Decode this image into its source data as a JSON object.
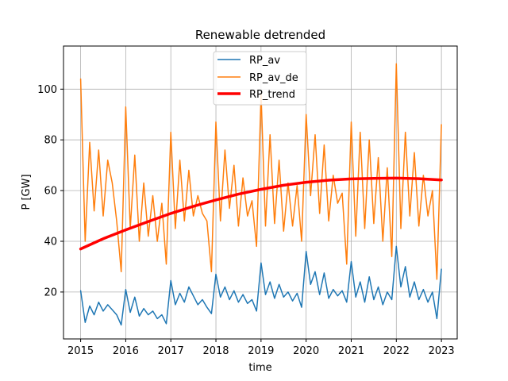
{
  "chart_data": {
    "type": "line",
    "title": "Renewable detrended",
    "xlabel": "time",
    "ylabel": "P [GW]",
    "xlim": [
      2014.62,
      2023.35
    ],
    "ylim": [
      1.5,
      117
    ],
    "x_ticks": [
      "2015",
      "2016",
      "2017",
      "2018",
      "2019",
      "2020",
      "2021",
      "2022",
      "2023"
    ],
    "y_ticks": [
      "20",
      "40",
      "60",
      "80",
      "100"
    ],
    "grid": true,
    "legend_position": "top-center",
    "series": [
      {
        "name": "RP_av",
        "color": "#1f77b4",
        "x": [
          2015.0,
          2015.1,
          2015.2,
          2015.3,
          2015.4,
          2015.5,
          2015.6,
          2015.7,
          2015.8,
          2015.9,
          2016.0,
          2016.1,
          2016.2,
          2016.3,
          2016.4,
          2016.5,
          2016.6,
          2016.7,
          2016.8,
          2016.9,
          2017.0,
          2017.1,
          2017.2,
          2017.3,
          2017.4,
          2017.5,
          2017.6,
          2017.7,
          2017.8,
          2017.9,
          2018.0,
          2018.1,
          2018.2,
          2018.3,
          2018.4,
          2018.5,
          2018.6,
          2018.7,
          2018.8,
          2018.9,
          2019.0,
          2019.1,
          2019.2,
          2019.3,
          2019.4,
          2019.5,
          2019.6,
          2019.7,
          2019.8,
          2019.9,
          2020.0,
          2020.1,
          2020.2,
          2020.3,
          2020.4,
          2020.5,
          2020.6,
          2020.7,
          2020.8,
          2020.9,
          2021.0,
          2021.1,
          2021.2,
          2021.3,
          2021.4,
          2021.5,
          2021.6,
          2021.7,
          2021.8,
          2021.9,
          2022.0,
          2022.1,
          2022.2,
          2022.3,
          2022.4,
          2022.5,
          2022.6,
          2022.7,
          2022.8,
          2022.9,
          2023.0
        ],
        "values": [
          20.5,
          8.0,
          14.5,
          11.0,
          16.0,
          12.5,
          15.0,
          13.0,
          11.0,
          7.0,
          21.0,
          12.0,
          18.0,
          10.5,
          13.5,
          11.0,
          12.5,
          9.5,
          11.0,
          7.5,
          24.5,
          15.0,
          19.5,
          16.0,
          22.0,
          18.5,
          15.0,
          17.0,
          14.0,
          11.5,
          27.0,
          18.0,
          22.0,
          17.0,
          20.5,
          16.0,
          19.0,
          15.5,
          17.0,
          12.5,
          31.5,
          19.0,
          24.0,
          17.5,
          23.0,
          18.0,
          20.0,
          16.5,
          19.5,
          14.0,
          36.0,
          23.0,
          28.0,
          19.0,
          27.5,
          17.5,
          21.0,
          18.5,
          20.5,
          16.0,
          32.0,
          18.0,
          24.0,
          16.0,
          26.0,
          17.0,
          22.0,
          15.0,
          20.0,
          17.0,
          38.0,
          22.0,
          30.0,
          18.0,
          24.0,
          17.0,
          21.0,
          16.0,
          20.0,
          9.5,
          29.0
        ]
      },
      {
        "name": "RP_av_de",
        "color": "#ff7f0e",
        "x": [
          2015.0,
          2015.1,
          2015.2,
          2015.3,
          2015.4,
          2015.5,
          2015.6,
          2015.7,
          2015.8,
          2015.9,
          2016.0,
          2016.1,
          2016.2,
          2016.3,
          2016.4,
          2016.5,
          2016.6,
          2016.7,
          2016.8,
          2016.9,
          2017.0,
          2017.1,
          2017.2,
          2017.3,
          2017.4,
          2017.5,
          2017.6,
          2017.7,
          2017.8,
          2017.9,
          2018.0,
          2018.1,
          2018.2,
          2018.3,
          2018.4,
          2018.5,
          2018.6,
          2018.7,
          2018.8,
          2018.9,
          2019.0,
          2019.1,
          2019.2,
          2019.3,
          2019.4,
          2019.5,
          2019.6,
          2019.7,
          2019.8,
          2019.9,
          2020.0,
          2020.1,
          2020.2,
          2020.3,
          2020.4,
          2020.5,
          2020.6,
          2020.7,
          2020.8,
          2020.9,
          2021.0,
          2021.1,
          2021.2,
          2021.3,
          2021.4,
          2021.5,
          2021.6,
          2021.7,
          2021.8,
          2021.9,
          2022.0,
          2022.1,
          2022.2,
          2022.3,
          2022.4,
          2022.5,
          2022.6,
          2022.7,
          2022.8,
          2022.9,
          2023.0
        ],
        "values": [
          104.0,
          40.0,
          79.0,
          52.0,
          76.0,
          50.0,
          72.0,
          63.0,
          48.0,
          28.0,
          93.0,
          45.0,
          74.0,
          40.0,
          63.0,
          42.0,
          58.0,
          40.0,
          55.0,
          31.0,
          83.0,
          45.0,
          72.0,
          48.0,
          68.0,
          50.0,
          58.0,
          51.0,
          48.0,
          28.0,
          87.0,
          48.0,
          76.0,
          53.0,
          70.0,
          46.0,
          65.0,
          50.0,
          56.0,
          38.0,
          98.0,
          46.0,
          82.0,
          47.0,
          72.0,
          44.0,
          63.0,
          46.0,
          62.0,
          40.0,
          90.0,
          58.0,
          82.0,
          51.0,
          78.0,
          48.0,
          66.0,
          55.0,
          59.0,
          31.0,
          87.0,
          42.0,
          83.0,
          45.0,
          80.0,
          47.0,
          73.0,
          40.0,
          69.0,
          34.0,
          110.0,
          45.0,
          83.0,
          50.0,
          75.0,
          46.0,
          66.0,
          50.0,
          60.0,
          25.0,
          86.0
        ]
      },
      {
        "name": "RP_trend",
        "color": "#ff0000",
        "x": [
          2015.0,
          2015.5,
          2016.0,
          2016.5,
          2017.0,
          2017.5,
          2018.0,
          2018.5,
          2019.0,
          2019.5,
          2020.0,
          2020.5,
          2021.0,
          2021.5,
          2022.0,
          2022.5,
          2023.0
        ],
        "values": [
          37.0,
          41.0,
          44.5,
          47.8,
          51.0,
          53.8,
          56.3,
          58.6,
          60.5,
          62.1,
          63.3,
          64.1,
          64.6,
          64.8,
          64.9,
          64.7,
          64.2
        ]
      }
    ]
  }
}
